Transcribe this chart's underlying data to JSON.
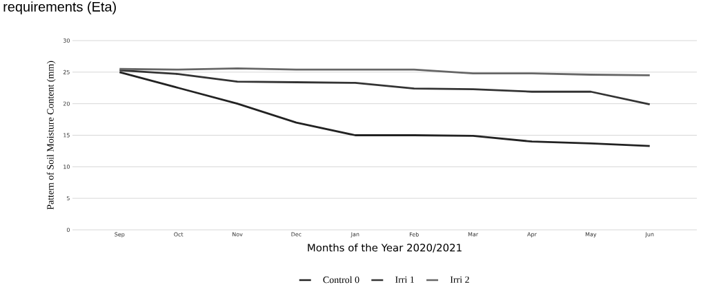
{
  "chart_data": {
    "type": "line",
    "xlabel": "Months of the Year 2020/2021",
    "ylabel": "Pattern of Soil Moisture Content (mm)",
    "categories": [
      "Sep",
      "Oct",
      "Nov",
      "Dec",
      "Jan",
      "Feb",
      "Mar",
      "Apr",
      "May",
      "Jun"
    ],
    "series": [
      {
        "name": "Control 0",
        "color": "#222222",
        "values": [
          25,
          22.5,
          20,
          17,
          15,
          15,
          14.9,
          14,
          13.7,
          13.3
        ]
      },
      {
        "name": "Irri 1",
        "color": "#333333",
        "values": [
          25.3,
          24.7,
          23.5,
          23.4,
          23.3,
          22.4,
          22.3,
          21.9,
          21.9,
          19.9
        ]
      },
      {
        "name": "Irri 2",
        "color": "#666666",
        "values": [
          25.5,
          25.4,
          25.6,
          25.4,
          25.4,
          25.4,
          24.8,
          24.8,
          24.6,
          24.5
        ]
      }
    ],
    "ylim": [
      0,
      30
    ],
    "yticks": [
      0,
      5,
      10,
      15,
      20,
      25,
      30
    ],
    "grid": "y",
    "legend": "bottom",
    "marker": "none",
    "line_style": "solid",
    "annotations": [
      "requirements (Eta)"
    ]
  }
}
